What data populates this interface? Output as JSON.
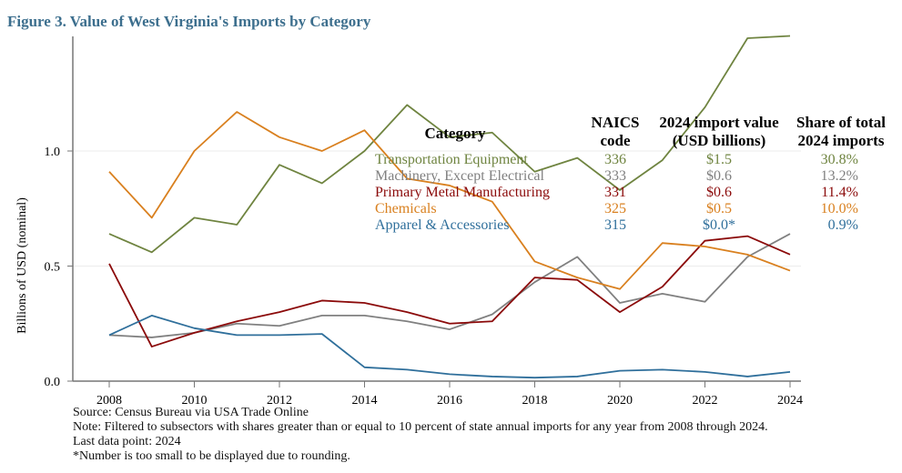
{
  "chart_data": {
    "type": "line",
    "title": "Figure 3. Value of West Virginia's Imports by Category",
    "xlabel": "",
    "ylabel": "Billions of USD (nominal)",
    "xlim": [
      2008,
      2024
    ],
    "ylim": [
      0,
      1.5
    ],
    "x_ticks": [
      2008,
      2010,
      2012,
      2014,
      2016,
      2018,
      2020,
      2022,
      2024
    ],
    "y_ticks": [
      0.0,
      0.5,
      1.0
    ],
    "y_tick_labels": [
      "0.0",
      "0.5",
      "1.0"
    ],
    "grid": true,
    "x": [
      2008,
      2009,
      2010,
      2011,
      2012,
      2013,
      2014,
      2015,
      2016,
      2017,
      2018,
      2019,
      2020,
      2021,
      2022,
      2023,
      2024
    ],
    "series": [
      {
        "name": "Transportation Equipment",
        "color": "#6f8440",
        "values": [
          0.64,
          0.56,
          0.71,
          0.68,
          0.94,
          0.86,
          1.0,
          1.2,
          1.06,
          1.08,
          0.91,
          0.97,
          0.83,
          0.96,
          1.19,
          1.49,
          1.5
        ]
      },
      {
        "name": "Machinery, Except Electrical",
        "color": "#808080",
        "values": [
          0.2,
          0.19,
          0.21,
          0.25,
          0.24,
          0.285,
          0.285,
          0.26,
          0.225,
          0.29,
          0.43,
          0.54,
          0.34,
          0.38,
          0.345,
          0.54,
          0.64
        ]
      },
      {
        "name": "Primary Metal Manufacturing",
        "color": "#8b0a0a",
        "values": [
          0.51,
          0.15,
          0.21,
          0.26,
          0.3,
          0.35,
          0.34,
          0.3,
          0.25,
          0.26,
          0.45,
          0.44,
          0.3,
          0.41,
          0.61,
          0.63,
          0.55
        ]
      },
      {
        "name": "Chemicals",
        "color": "#d9801f",
        "values": [
          0.91,
          0.71,
          1.0,
          1.17,
          1.06,
          1.0,
          1.09,
          0.88,
          0.85,
          0.78,
          0.52,
          0.45,
          0.4,
          0.6,
          0.585,
          0.55,
          0.48
        ]
      },
      {
        "name": "Apparel & Accessories",
        "color": "#2f6f9b",
        "values": [
          0.2,
          0.285,
          0.23,
          0.2,
          0.2,
          0.205,
          0.06,
          0.05,
          0.03,
          0.02,
          0.015,
          0.02,
          0.045,
          0.05,
          0.04,
          0.02,
          0.04
        ]
      }
    ],
    "legend": {
      "placement": "top-right",
      "headers": [
        "Category",
        "NAICS code",
        "2024 import value (USD billions)",
        "Share of total 2024 imports"
      ],
      "header_lines": {
        "naics": [
          "NAICS",
          "code"
        ],
        "value": [
          "2024 import value",
          "(USD billions)"
        ],
        "share": [
          "Share of total",
          "2024 imports"
        ]
      },
      "rows": [
        {
          "category": "Transportation Equipment",
          "naics": "336",
          "value": "$1.5",
          "share": "30.8%"
        },
        {
          "category": "Machinery, Except Electrical",
          "naics": "333",
          "value": "$0.6",
          "share": "13.2%"
        },
        {
          "category": "Primary Metal Manufacturing",
          "naics": "331",
          "value": "$0.6",
          "share": "11.4%"
        },
        {
          "category": "Chemicals",
          "naics": "325",
          "value": "$0.5",
          "share": "10.0%"
        },
        {
          "category": "Apparel & Accessories",
          "naics": "315",
          "value": "$0.0*",
          "share": "0.9%"
        }
      ]
    },
    "title_color": "#3d6f8e"
  },
  "notes": [
    "Source: Census Bureau via USA Trade Online",
    "Note: Filtered to subsectors with shares greater than or equal to 10 percent of state annual imports for any year from 2008 through 2024.",
    "Last data point: 2024",
    "*Number is too small to be displayed due to rounding."
  ]
}
